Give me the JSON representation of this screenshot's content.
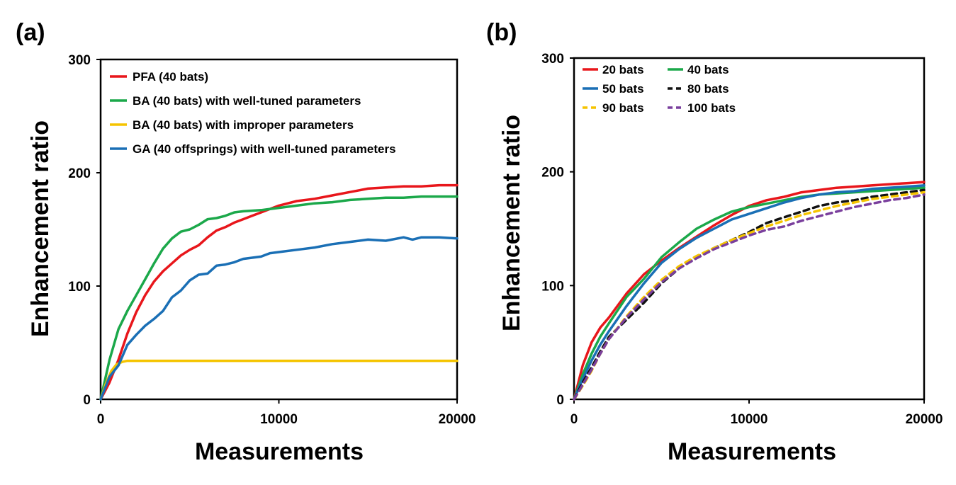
{
  "chart_data": [
    {
      "type": "line",
      "panel_label": "(a)",
      "xlabel": "Measurements",
      "ylabel": "Enhancement ratio",
      "xlim": [
        0,
        20000
      ],
      "ylim": [
        0,
        300
      ],
      "xticks": [
        0,
        10000,
        20000
      ],
      "yticks": [
        0,
        100,
        200,
        300
      ],
      "grid": false,
      "legend_position": "top-left",
      "series": [
        {
          "name": "PFA (40 bats)",
          "color": "#e8161b",
          "dash": "solid",
          "x": [
            0,
            500,
            1000,
            1500,
            2000,
            2500,
            3000,
            3500,
            4000,
            4500,
            5000,
            5500,
            6000,
            6500,
            7000,
            7500,
            8000,
            8500,
            9000,
            10000,
            11000,
            12000,
            13000,
            14000,
            15000,
            16000,
            17000,
            18000,
            19000,
            20000
          ],
          "y": [
            0,
            15,
            35,
            58,
            77,
            92,
            104,
            113,
            120,
            127,
            132,
            136,
            143,
            149,
            152,
            156,
            159,
            162,
            165,
            171,
            175,
            177,
            180,
            183,
            186,
            187,
            188,
            188,
            189,
            189
          ]
        },
        {
          "name": "BA (40 bats) with well-tuned parameters",
          "color": "#1ba84a",
          "dash": "solid",
          "x": [
            0,
            500,
            1000,
            1500,
            2000,
            2500,
            3000,
            3500,
            4000,
            4500,
            5000,
            5500,
            6000,
            6500,
            7000,
            7500,
            8000,
            9000,
            10000,
            11000,
            12000,
            13000,
            14000,
            15000,
            16000,
            17000,
            18000,
            19000,
            20000
          ],
          "y": [
            0,
            35,
            62,
            78,
            92,
            106,
            120,
            133,
            142,
            148,
            150,
            154,
            159,
            160,
            162,
            165,
            166,
            167,
            169,
            171,
            173,
            174,
            176,
            177,
            178,
            178,
            179,
            179,
            179
          ]
        },
        {
          "name": "BA (40 bats) with improper parameters",
          "color": "#f5c400",
          "dash": "solid",
          "x": [
            0,
            300,
            600,
            900,
            1200,
            1500,
            2000,
            5000,
            10000,
            15000,
            20000
          ],
          "y": [
            0,
            14,
            25,
            31,
            33,
            34,
            34,
            34,
            34,
            34,
            34
          ]
        },
        {
          "name": "GA (40 offsprings) with well-tuned parameters",
          "color": "#1a6fb5",
          "dash": "solid",
          "x": [
            0,
            500,
            1000,
            1500,
            2000,
            2500,
            3000,
            3500,
            4000,
            4500,
            5000,
            5500,
            6000,
            6500,
            7000,
            7500,
            8000,
            8500,
            9000,
            9500,
            10000,
            11000,
            12000,
            13000,
            14000,
            15000,
            16000,
            17000,
            17500,
            18000,
            19000,
            20000
          ],
          "y": [
            0,
            20,
            30,
            48,
            57,
            65,
            71,
            78,
            90,
            96,
            105,
            110,
            111,
            118,
            119,
            121,
            124,
            125,
            126,
            129,
            130,
            132,
            134,
            137,
            139,
            141,
            140,
            143,
            141,
            143,
            143,
            142
          ]
        }
      ]
    },
    {
      "type": "line",
      "panel_label": "(b)",
      "xlabel": "Measurements",
      "ylabel": "Enhancement ratio",
      "xlim": [
        0,
        20000
      ],
      "ylim": [
        0,
        300
      ],
      "xticks": [
        0,
        10000,
        20000
      ],
      "yticks": [
        0,
        100,
        200,
        300
      ],
      "grid": false,
      "legend_position": "top-left",
      "series": [
        {
          "name": "20 bats",
          "color": "#e8161b",
          "dash": "solid",
          "x": [
            0,
            500,
            1000,
            1500,
            2000,
            3000,
            4000,
            5000,
            6000,
            7000,
            8000,
            9000,
            10000,
            11000,
            12000,
            13000,
            14000,
            15000,
            16000,
            17000,
            18000,
            19000,
            20000
          ],
          "y": [
            0,
            30,
            50,
            63,
            72,
            93,
            110,
            122,
            133,
            143,
            153,
            162,
            170,
            175,
            178,
            182,
            184,
            186,
            187,
            188,
            189,
            190,
            191
          ]
        },
        {
          "name": "40 bats",
          "color": "#1ba84a",
          "dash": "solid",
          "x": [
            0,
            500,
            1000,
            1500,
            2000,
            3000,
            4000,
            5000,
            6000,
            7000,
            8000,
            9000,
            10000,
            11000,
            12000,
            13000,
            14000,
            15000,
            16000,
            17000,
            18000,
            19000,
            20000
          ],
          "y": [
            0,
            22,
            40,
            55,
            67,
            90,
            106,
            125,
            138,
            150,
            158,
            165,
            169,
            172,
            175,
            178,
            180,
            181,
            182,
            183,
            184,
            185,
            186
          ]
        },
        {
          "name": "50 bats",
          "color": "#1a6fb5",
          "dash": "solid",
          "x": [
            0,
            500,
            1000,
            1500,
            2000,
            3000,
            4000,
            5000,
            6000,
            7000,
            8000,
            9000,
            10000,
            11000,
            12000,
            13000,
            14000,
            15000,
            16000,
            17000,
            18000,
            19000,
            20000
          ],
          "y": [
            0,
            18,
            34,
            48,
            60,
            82,
            102,
            120,
            132,
            142,
            150,
            158,
            163,
            168,
            173,
            177,
            180,
            182,
            183,
            185,
            186,
            187,
            188
          ]
        },
        {
          "name": "80 bats",
          "color": "#111111",
          "dash": "dashed",
          "x": [
            0,
            500,
            1000,
            1500,
            2000,
            3000,
            4000,
            5000,
            6000,
            7000,
            8000,
            9000,
            10000,
            11000,
            12000,
            13000,
            14000,
            15000,
            16000,
            17000,
            18000,
            19000,
            20000
          ],
          "y": [
            0,
            15,
            28,
            42,
            55,
            70,
            85,
            102,
            115,
            125,
            133,
            140,
            147,
            155,
            160,
            165,
            170,
            173,
            175,
            178,
            180,
            182,
            184
          ]
        },
        {
          "name": "90 bats",
          "color": "#f5c400",
          "dash": "dashed",
          "x": [
            0,
            500,
            1000,
            1500,
            2000,
            3000,
            4000,
            5000,
            6000,
            7000,
            8000,
            9000,
            10000,
            11000,
            12000,
            13000,
            14000,
            15000,
            16000,
            17000,
            18000,
            19000,
            20000
          ],
          "y": [
            0,
            12,
            25,
            40,
            53,
            73,
            90,
            105,
            117,
            126,
            133,
            140,
            146,
            152,
            157,
            162,
            166,
            170,
            173,
            176,
            178,
            180,
            182
          ]
        },
        {
          "name": "100 bats",
          "color": "#7a3f9d",
          "dash": "dashed",
          "x": [
            0,
            500,
            1000,
            1500,
            2000,
            3000,
            4000,
            5000,
            6000,
            7000,
            8000,
            9000,
            10000,
            11000,
            12000,
            13000,
            14000,
            15000,
            16000,
            17000,
            18000,
            19000,
            20000
          ],
          "y": [
            0,
            13,
            26,
            40,
            53,
            72,
            88,
            103,
            115,
            124,
            132,
            138,
            144,
            149,
            152,
            157,
            161,
            165,
            169,
            172,
            175,
            177,
            180
          ]
        }
      ]
    }
  ]
}
